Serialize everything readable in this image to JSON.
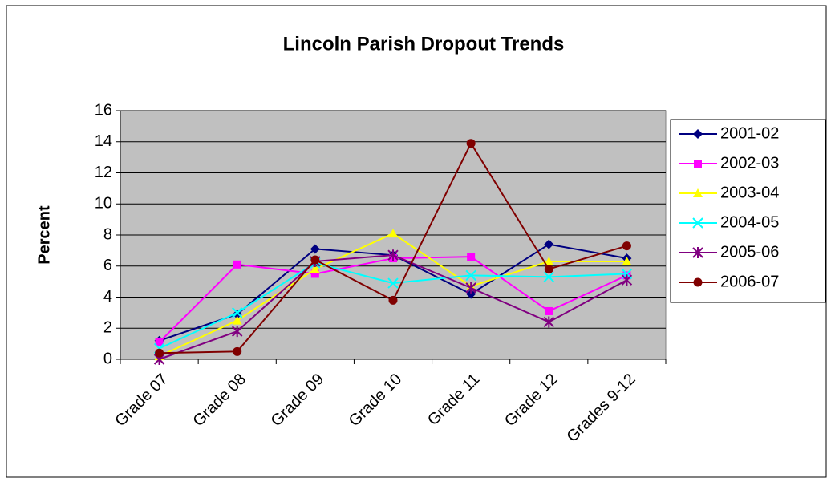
{
  "chart_data": {
    "type": "line",
    "title": "Lincoln Parish Dropout Trends",
    "y_label": "Percent",
    "categories": [
      "Grade 07",
      "Grade 08",
      "Grade 09",
      "Grade 10",
      "Grade 11",
      "Grade 12",
      "Grades 9-12"
    ],
    "ylim": [
      0,
      16
    ],
    "yticks": [
      0,
      2,
      4,
      6,
      8,
      10,
      12,
      14,
      16
    ],
    "grid": true,
    "legend": "right",
    "series": [
      {
        "name": "2001-02",
        "color": "#000080",
        "marker": "diamond",
        "values": [
          1.2,
          2.9,
          7.1,
          6.7,
          4.2,
          7.4,
          6.5
        ]
      },
      {
        "name": "2002-03",
        "color": "#ff00ff",
        "marker": "square",
        "values": [
          1.1,
          6.1,
          5.5,
          6.5,
          6.6,
          3.1,
          5.4
        ]
      },
      {
        "name": "2003-04",
        "color": "#ffff00",
        "marker": "triangle",
        "values": [
          0.2,
          2.5,
          5.8,
          8.1,
          4.7,
          6.3,
          6.3
        ]
      },
      {
        "name": "2004-05",
        "color": "#00ffff",
        "marker": "x",
        "values": [
          0.7,
          3.0,
          6.2,
          4.9,
          5.4,
          5.3,
          5.5
        ]
      },
      {
        "name": "2005-06",
        "color": "#800080",
        "marker": "star",
        "values": [
          0.0,
          1.8,
          6.3,
          6.7,
          4.6,
          2.4,
          5.1
        ]
      },
      {
        "name": "2006-07",
        "color": "#800000",
        "marker": "circle",
        "values": [
          0.4,
          0.5,
          6.4,
          3.8,
          13.9,
          5.8,
          7.3
        ]
      }
    ]
  }
}
